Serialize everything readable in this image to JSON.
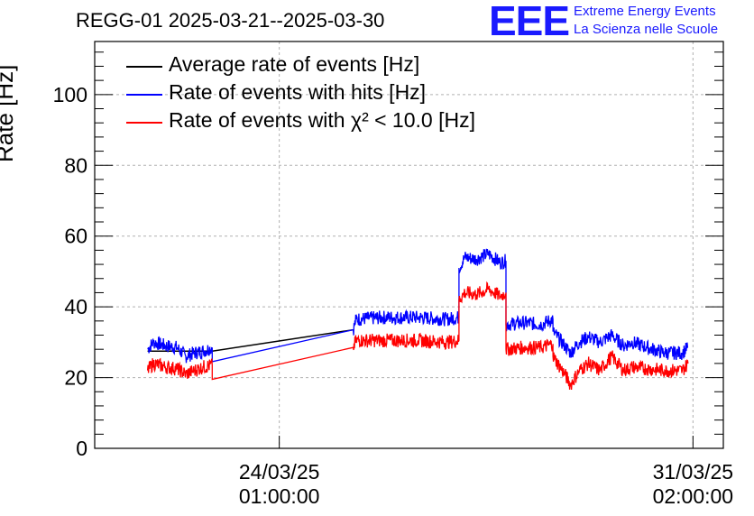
{
  "header": {
    "title": "REGG-01 2025-03-21--2025-03-30",
    "logo": "EEE",
    "logo_line1": "Extreme Energy Events",
    "logo_line2": "La Scienza nelle Scuole"
  },
  "colors": {
    "average": "#000000",
    "hits": "#0000ff",
    "chi2": "#ff0000",
    "grid": "#b0b0b0",
    "logo": "#1a1aff"
  },
  "chart_data": {
    "type": "line",
    "title": "REGG-01 2025-03-21--2025-03-30",
    "xlabel": "",
    "ylabel": "Rate [Hz]",
    "x_unit": "days since 2025-03-21 00:00",
    "xlim": [
      -0.1,
      10.6
    ],
    "ylim": [
      0,
      115
    ],
    "y_ticks": [
      0,
      20,
      40,
      60,
      80,
      100
    ],
    "x_ticks": [
      {
        "x": 3.0417,
        "label_line1": "24/03/25",
        "label_line2": "01:00:00"
      },
      {
        "x": 10.0833,
        "label_line1": "31/03/25",
        "label_line2": "02:00:00"
      }
    ],
    "grid": true,
    "legend_position": "top-left",
    "series": [
      {
        "name": "Average rate of events [Hz]",
        "color": "#000000",
        "points": [
          [
            0.8,
            27.5
          ],
          [
            1.9,
            27.5
          ],
          [
            4.3,
            33.5
          ]
        ]
      },
      {
        "name": "Rate of events with hits [Hz]",
        "color": "#0000ff",
        "points": [
          [
            0.8,
            28
          ],
          [
            0.9,
            30
          ],
          [
            1.1,
            29
          ],
          [
            1.3,
            28.5
          ],
          [
            1.45,
            26
          ],
          [
            1.6,
            27
          ],
          [
            1.75,
            27.5
          ],
          [
            1.9,
            28.5
          ],
          [
            1.9,
            24.5
          ],
          [
            4.3,
            33.5
          ],
          [
            4.35,
            36.5
          ],
          [
            4.8,
            37
          ],
          [
            5.4,
            37
          ],
          [
            5.9,
            36.5
          ],
          [
            6.1,
            37
          ],
          [
            6.1,
            51
          ],
          [
            6.2,
            54
          ],
          [
            6.4,
            53.5
          ],
          [
            6.6,
            55
          ],
          [
            6.8,
            52.5
          ],
          [
            6.9,
            53
          ],
          [
            6.9,
            35
          ],
          [
            7.2,
            35.5
          ],
          [
            7.5,
            35
          ],
          [
            7.7,
            36.5
          ],
          [
            7.7,
            33
          ],
          [
            7.9,
            29
          ],
          [
            8.0,
            27
          ],
          [
            8.15,
            30
          ],
          [
            8.3,
            31.5
          ],
          [
            8.5,
            30
          ],
          [
            8.7,
            32
          ],
          [
            8.9,
            29
          ],
          [
            9.05,
            30
          ],
          [
            9.3,
            28.5
          ],
          [
            9.6,
            27
          ],
          [
            9.9,
            27
          ],
          [
            10.0,
            28.5
          ]
        ]
      },
      {
        "name": "Rate of events with χ² < 10.0 [Hz]",
        "color": "#ff0000",
        "points": [
          [
            0.8,
            22
          ],
          [
            0.9,
            24
          ],
          [
            1.1,
            23
          ],
          [
            1.3,
            22.5
          ],
          [
            1.45,
            21
          ],
          [
            1.6,
            22
          ],
          [
            1.75,
            23
          ],
          [
            1.9,
            23.5
          ],
          [
            1.9,
            19.5
          ],
          [
            4.3,
            28.5
          ],
          [
            4.35,
            30.5
          ],
          [
            4.8,
            30.5
          ],
          [
            5.4,
            30.5
          ],
          [
            5.9,
            30
          ],
          [
            6.1,
            30.5
          ],
          [
            6.1,
            42
          ],
          [
            6.2,
            44
          ],
          [
            6.4,
            43.5
          ],
          [
            6.6,
            45
          ],
          [
            6.8,
            43
          ],
          [
            6.9,
            44
          ],
          [
            6.9,
            28
          ],
          [
            7.2,
            28.5
          ],
          [
            7.5,
            28.5
          ],
          [
            7.7,
            29.5
          ],
          [
            7.7,
            26
          ],
          [
            7.9,
            21
          ],
          [
            8.0,
            18
          ],
          [
            8.15,
            22
          ],
          [
            8.3,
            24
          ],
          [
            8.5,
            22
          ],
          [
            8.7,
            26
          ],
          [
            8.9,
            22
          ],
          [
            9.05,
            23
          ],
          [
            9.3,
            22.5
          ],
          [
            9.6,
            22
          ],
          [
            9.9,
            22
          ],
          [
            10.0,
            24
          ]
        ]
      }
    ]
  }
}
